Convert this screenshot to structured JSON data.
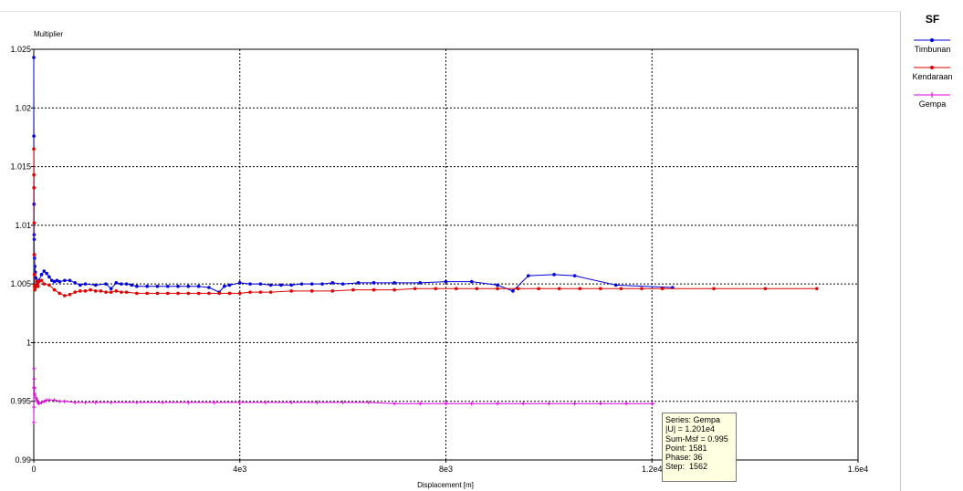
{
  "chart_data": {
    "type": "line",
    "ylabel": "Multiplier",
    "xlabel": "Displacement [m]",
    "xlim": [
      0,
      16000
    ],
    "ylim": [
      0.99,
      1.025
    ],
    "x_ticks": [
      0,
      4000,
      8000,
      12000,
      16000
    ],
    "x_tick_labels": [
      "0",
      "4e3",
      "8e3",
      "1.2e4",
      "1.6e4"
    ],
    "y_ticks": [
      0.99,
      0.995,
      1.0,
      1.005,
      1.01,
      1.015,
      1.02,
      1.025
    ],
    "y_tick_labels": [
      "0.99",
      "0.995",
      "1",
      "1.005",
      "1.01",
      "1.015",
      "1.02",
      "1.025"
    ],
    "grid": true,
    "legend_title": "SF",
    "legend_position": "right",
    "series": [
      {
        "name": "Timbunan",
        "color": "#0000e0",
        "marker": "dot",
        "x": [
          0,
          2,
          4,
          6,
          8,
          10,
          15,
          20,
          30,
          40,
          60,
          80,
          100,
          150,
          200,
          250,
          300,
          350,
          400,
          450,
          500,
          600,
          700,
          800,
          900,
          1000,
          1200,
          1400,
          1500,
          1600,
          1700,
          1800,
          1900,
          2000,
          2200,
          2400,
          2600,
          2800,
          3000,
          3200,
          3400,
          3600,
          3700,
          3800,
          4000,
          4200,
          4400,
          4600,
          4800,
          5000,
          5200,
          5400,
          5600,
          5800,
          6000,
          6300,
          6600,
          7000,
          7500,
          8000,
          8500,
          9000,
          9300,
          9600,
          10100,
          10500,
          11300,
          12400
        ],
        "y": [
          1.0243,
          1.0176,
          1.0118,
          1.0092,
          1.0088,
          1.0075,
          1.0072,
          1.0065,
          1.006,
          1.0055,
          1.0052,
          1.0048,
          1.0053,
          1.0058,
          1.0061,
          1.0059,
          1.0056,
          1.0053,
          1.0052,
          1.0053,
          1.0052,
          1.0053,
          1.0053,
          1.0051,
          1.0049,
          1.005,
          1.0049,
          1.005,
          1.0046,
          1.0051,
          1.005,
          1.005,
          1.0049,
          1.0048,
          1.0048,
          1.0048,
          1.0048,
          1.0048,
          1.0048,
          1.0048,
          1.0047,
          1.0043,
          1.0048,
          1.0049,
          1.0051,
          1.005,
          1.005,
          1.0049,
          1.0049,
          1.0049,
          1.005,
          1.005,
          1.005,
          1.0051,
          1.005,
          1.0051,
          1.0051,
          1.0051,
          1.0051,
          1.0052,
          1.0052,
          1.0049,
          1.0044,
          1.0057,
          1.0058,
          1.0057,
          1.0049,
          1.0047
        ]
      },
      {
        "name": "Kendaraan",
        "color": "#e00000",
        "marker": "dot",
        "x": [
          0,
          2,
          4,
          6,
          8,
          10,
          15,
          20,
          30,
          40,
          60,
          80,
          100,
          150,
          200,
          300,
          400,
          500,
          600,
          700,
          800,
          900,
          1000,
          1100,
          1200,
          1300,
          1400,
          1500,
          1600,
          1700,
          1800,
          2000,
          2200,
          2400,
          2600,
          2800,
          3000,
          3200,
          3400,
          3600,
          3800,
          4000,
          4200,
          4400,
          4600,
          5000,
          5400,
          5800,
          6200,
          6600,
          7000,
          7400,
          7800,
          8200,
          8600,
          9000,
          9400,
          9800,
          10200,
          10600,
          11000,
          11400,
          11800,
          12200,
          13200,
          14200,
          15200
        ],
        "y": [
          1.0165,
          1.0143,
          1.0132,
          1.0102,
          1.0075,
          1.0058,
          1.0048,
          1.0045,
          1.0047,
          1.0049,
          1.0052,
          1.0048,
          1.0052,
          1.0053,
          1.005,
          1.0049,
          1.0045,
          1.0042,
          1.004,
          1.0041,
          1.0043,
          1.0044,
          1.0044,
          1.0045,
          1.0044,
          1.0044,
          1.0043,
          1.0043,
          1.0044,
          1.0043,
          1.0043,
          1.0042,
          1.0042,
          1.0042,
          1.0042,
          1.0042,
          1.0042,
          1.0042,
          1.0042,
          1.0042,
          1.0042,
          1.0042,
          1.0043,
          1.0043,
          1.0043,
          1.0044,
          1.0044,
          1.0044,
          1.0045,
          1.0045,
          1.0045,
          1.0046,
          1.0046,
          1.0046,
          1.0046,
          1.0046,
          1.0046,
          1.0046,
          1.0046,
          1.0046,
          1.0046,
          1.0046,
          1.0046,
          1.0046,
          1.0046,
          1.0046,
          1.0046
        ]
      },
      {
        "name": "Gempa",
        "color": "#e000e0",
        "marker": "plus",
        "x": [
          0,
          2,
          4,
          6,
          8,
          10,
          20,
          40,
          60,
          80,
          100,
          150,
          200,
          250,
          300,
          400,
          500,
          600,
          800,
          1000,
          1200,
          1500,
          2000,
          2500,
          3000,
          3500,
          4000,
          4500,
          5000,
          5500,
          6000,
          6500,
          7000,
          7500,
          8000,
          8500,
          9000,
          9500,
          10000,
          10500,
          11000,
          11500,
          12010
        ],
        "y": [
          0.9932,
          0.9945,
          0.9962,
          0.9978,
          0.9969,
          0.9961,
          0.9956,
          0.9953,
          0.9951,
          0.9949,
          0.9948,
          0.9949,
          0.995,
          0.9951,
          0.9951,
          0.9951,
          0.995,
          0.995,
          0.9949,
          0.9949,
          0.9949,
          0.9949,
          0.9949,
          0.9949,
          0.9949,
          0.9949,
          0.9949,
          0.9949,
          0.9949,
          0.9949,
          0.9949,
          0.9949,
          0.9948,
          0.9948,
          0.9948,
          0.9948,
          0.9948,
          0.9948,
          0.9948,
          0.9948,
          0.9948,
          0.9948,
          0.9948
        ]
      }
    ]
  },
  "tooltip": {
    "lines": [
      "Series: Gempa",
      "|U| = 1.201e4",
      "Sum-Msf = 0.995",
      "Point: 1581",
      "Phase: 36",
      "Step:  1562"
    ]
  }
}
